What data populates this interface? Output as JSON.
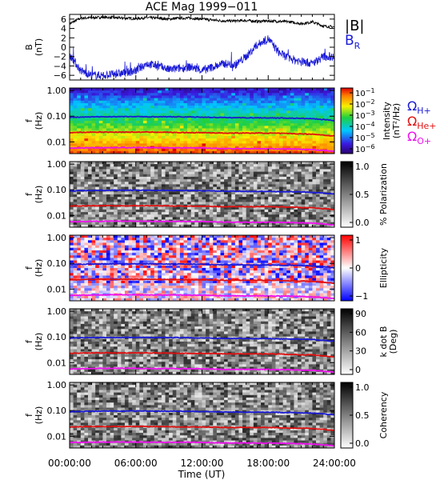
{
  "figure": {
    "title": "ACE Mag 1999−011",
    "xlabel": "Time (UT)",
    "xticks": [
      "00:00:00",
      "06:00:00",
      "12:00:00",
      "18:00:00",
      "24:00:00"
    ]
  },
  "colors": {
    "B_total": "#000000",
    "B_R": "#1a1ad6",
    "H_plus": "#1a1ad6",
    "He_plus": "#e01010",
    "O_plus": "#ee10ee"
  },
  "chart_data": [
    {
      "type": "line",
      "panel": "magnetic-field",
      "ylabel": [
        "B",
        "(nT)"
      ],
      "yticks": [
        "6",
        "4",
        "2",
        "0",
        "−2",
        "−4",
        "−6"
      ],
      "ylim": [
        -7,
        7
      ],
      "xlim": [
        0,
        24
      ],
      "legend": [
        {
          "label": "|B|",
          "color": "#000000"
        },
        {
          "label": "B",
          "sub": "R",
          "color": "#1a1ad6"
        }
      ],
      "series": [
        {
          "name": "|B|",
          "x": [
            0,
            1,
            2,
            3,
            4,
            5,
            6,
            7,
            8,
            9,
            10,
            11,
            12,
            13,
            14,
            15,
            16,
            17,
            18,
            19,
            20,
            21,
            22,
            23,
            24
          ],
          "values": [
            5.0,
            6.2,
            6.3,
            6.4,
            6.3,
            6.2,
            6.1,
            6.3,
            6.2,
            6.0,
            6.2,
            6.2,
            6.0,
            5.8,
            5.6,
            5.6,
            5.7,
            5.5,
            5.6,
            5.5,
            5.4,
            5.0,
            5.4,
            4.5,
            4.3
          ]
        },
        {
          "name": "B_R",
          "x": [
            0,
            1,
            2,
            3,
            4,
            5,
            6,
            7,
            8,
            9,
            10,
            11,
            12,
            13,
            14,
            15,
            16,
            17,
            18,
            19,
            20,
            21,
            22,
            23,
            24
          ],
          "values": [
            -1.5,
            -5.0,
            -6.0,
            -6.0,
            -5.8,
            -5.5,
            -5.0,
            -3.5,
            -4.0,
            -4.8,
            -4.5,
            -4.2,
            -5.0,
            -4.2,
            -3.5,
            -3.8,
            -2.0,
            0.5,
            1.8,
            -1.2,
            -2.5,
            -3.0,
            -3.5,
            -2.0,
            -2.0
          ]
        }
      ]
    },
    {
      "type": "heatmap",
      "panel": "intensity",
      "ylabel": [
        "f",
        "(Hz)"
      ],
      "yticks": [
        "1.00",
        "0.10",
        "0.01"
      ],
      "colorbar": {
        "label": [
          "Intensity",
          "(nT²/Hz)"
        ],
        "ticks": [
          {
            "base": "10",
            "exp": "−1"
          },
          {
            "base": "10",
            "exp": "−2"
          },
          {
            "base": "10",
            "exp": "−3"
          },
          {
            "base": "10",
            "exp": "−4"
          },
          {
            "base": "10",
            "exp": "−5"
          },
          {
            "base": "10",
            "exp": "−6"
          }
        ],
        "scale": "rainbow"
      },
      "legend": [
        {
          "label": "Ω",
          "sub": "H+",
          "color": "#1a1ad6"
        },
        {
          "label": "Ω",
          "sub": "He+",
          "color": "#e01010"
        },
        {
          "label": "Ω",
          "sub": "O+",
          "color": "#ee10ee"
        }
      ]
    },
    {
      "type": "heatmap",
      "panel": "polarization",
      "ylabel": [
        "f",
        "(Hz)"
      ],
      "yticks": [
        "1.00",
        "0.10",
        "0.01"
      ],
      "colorbar": {
        "label": [
          "% Polarization"
        ],
        "ticks": [
          "1.0",
          "0.5",
          "0.0"
        ],
        "scale": "gray"
      }
    },
    {
      "type": "heatmap",
      "panel": "ellipticity",
      "ylabel": [
        "f",
        "(Hz)"
      ],
      "yticks": [
        "1.00",
        "0.10",
        "0.01"
      ],
      "colorbar": {
        "label": [
          "Ellipticity"
        ],
        "ticks": [
          "1",
          "0",
          "−1"
        ],
        "scale": "bwr"
      }
    },
    {
      "type": "heatmap",
      "panel": "k-dot-b",
      "ylabel": [
        "f",
        "(Hz)"
      ],
      "yticks": [
        "1.00",
        "0.10",
        "0.01"
      ],
      "colorbar": {
        "label": [
          "k dot B",
          "(Deg)"
        ],
        "ticks": [
          "90",
          "60",
          "30",
          "0"
        ],
        "scale": "gray"
      }
    },
    {
      "type": "heatmap",
      "panel": "coherency",
      "ylabel": [
        "f",
        "(Hz)"
      ],
      "yticks": [
        "1.00",
        "0.10",
        "0.01"
      ],
      "colorbar": {
        "label": [
          "Coherency"
        ],
        "ticks": [
          "1.0",
          "0.5",
          "0.0"
        ],
        "scale": "gray"
      }
    }
  ],
  "gyrofrequency_lines": {
    "x": [
      0,
      2,
      4,
      6,
      8,
      10,
      12,
      14,
      16,
      18,
      20,
      22,
      24
    ],
    "H_plus": [
      0.09,
      0.094,
      0.096,
      0.096,
      0.095,
      0.094,
      0.092,
      0.088,
      0.087,
      0.086,
      0.084,
      0.08,
      0.068
    ],
    "He_plus": [
      0.023,
      0.024,
      0.024,
      0.024,
      0.024,
      0.023,
      0.023,
      0.022,
      0.022,
      0.022,
      0.021,
      0.02,
      0.017
    ],
    "O_plus": [
      0.0057,
      0.0059,
      0.006,
      0.006,
      0.0059,
      0.0059,
      0.0058,
      0.0055,
      0.0055,
      0.0054,
      0.0053,
      0.005,
      0.0043
    ]
  }
}
